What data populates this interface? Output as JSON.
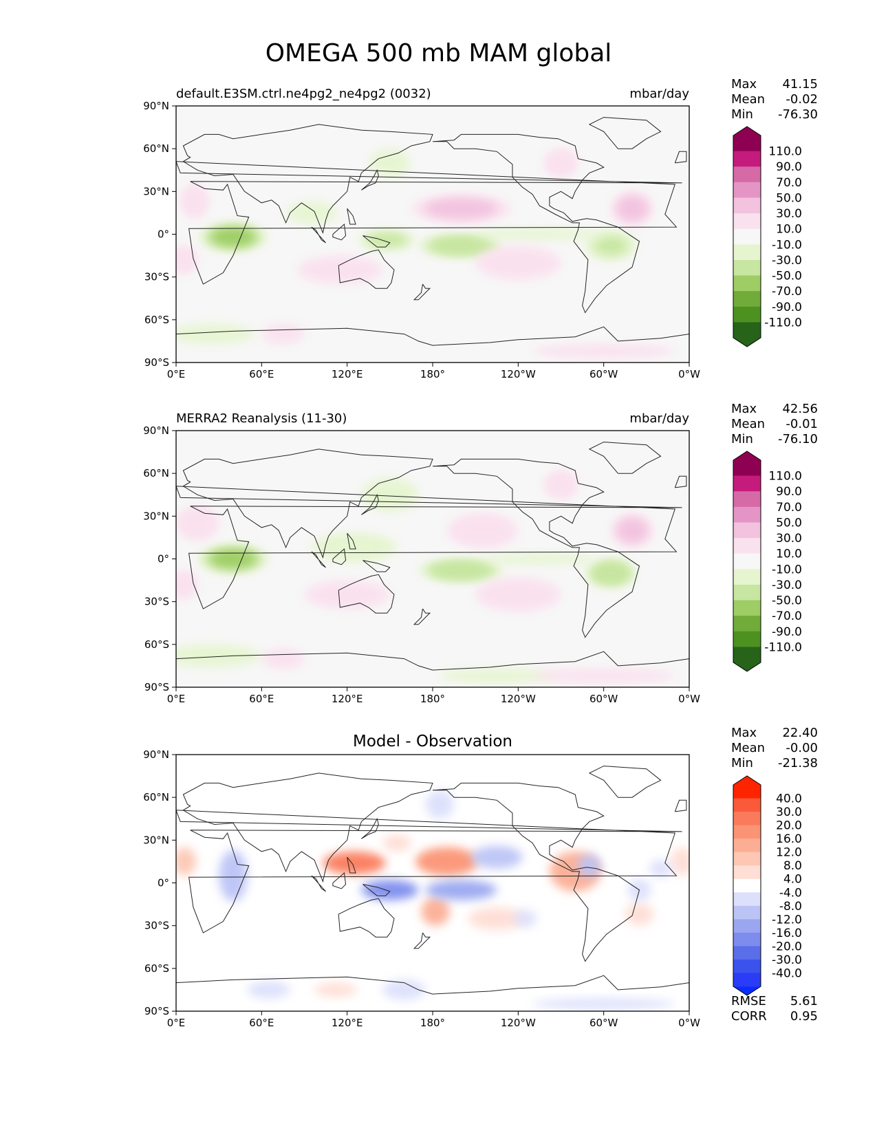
{
  "figure_title": "OMEGA 500 mb MAM global",
  "chart_data": [
    {
      "type": "heatmap",
      "panel": "model",
      "title_left": "default.E3SM.ctrl.ne4pg2_ne4pg2 (0032)",
      "title_center": "",
      "units": "mbar/day",
      "stats": [
        [
          "Max",
          "41.15"
        ],
        [
          "Mean",
          "-0.02"
        ],
        [
          "Min",
          "-76.30"
        ]
      ],
      "xlim": [
        0,
        360
      ],
      "ylim": [
        -90,
        90
      ],
      "xticks": [
        "0°E",
        "60°E",
        "120°E",
        "180°",
        "120°W",
        "60°W",
        "0°W"
      ],
      "yticks": [
        "90°N",
        "60°N",
        "30°N",
        "0°",
        "30°S",
        "60°S",
        "90°S"
      ],
      "colorbar_labels": [
        "110.0",
        "90.0",
        "70.0",
        "50.0",
        "30.0",
        "10.0",
        "-10.0",
        "-30.0",
        "-50.0",
        "-70.0",
        "-90.0",
        "-110.0"
      ],
      "colorbar_colors": [
        "#8e0152",
        "#c51b7d",
        "#d66aa7",
        "#e595c5",
        "#f2c2df",
        "#fae1ee",
        "#f7f7f7",
        "#e6f5d0",
        "#c7e6a1",
        "#9dcd64",
        "#71ab3a",
        "#4d9221",
        "#276419"
      ],
      "colorbar_top_color": "#8e0152",
      "colorbar_bottom_color": "#276419",
      "features": [
        {
          "lon": 40,
          "lat": -2,
          "value": -55,
          "rlon": 24,
          "rlat": 10
        },
        {
          "lon": 148,
          "lat": -4,
          "value": -35,
          "rlon": 20,
          "rlat": 7
        },
        {
          "lon": 200,
          "lat": -8,
          "value": -48,
          "rlon": 30,
          "rlat": 8
        },
        {
          "lon": 305,
          "lat": -8,
          "value": -45,
          "rlon": 18,
          "rlat": 10
        },
        {
          "lon": 95,
          "lat": 15,
          "value": -20,
          "rlon": 18,
          "rlat": 8
        },
        {
          "lon": 255,
          "lat": 0,
          "value": -18,
          "rlon": 45,
          "rlat": 4
        },
        {
          "lon": 150,
          "lat": 50,
          "value": -18,
          "rlon": 14,
          "rlat": 10
        },
        {
          "lon": 25,
          "lat": -70,
          "value": -15,
          "rlon": 30,
          "rlat": 7
        },
        {
          "lon": 13,
          "lat": 23,
          "value": 25,
          "rlon": 10,
          "rlat": 12
        },
        {
          "lon": 200,
          "lat": 18,
          "value": 30,
          "rlon": 35,
          "rlat": 10
        },
        {
          "lon": 320,
          "lat": 18,
          "value": 30,
          "rlon": 15,
          "rlat": 12
        },
        {
          "lon": 5,
          "lat": -18,
          "value": 22,
          "rlon": 10,
          "rlat": 10
        },
        {
          "lon": 270,
          "lat": 50,
          "value": 22,
          "rlon": 12,
          "rlat": 10
        },
        {
          "lon": 115,
          "lat": -25,
          "value": 15,
          "rlon": 30,
          "rlat": 10
        },
        {
          "lon": 240,
          "lat": -20,
          "value": 15,
          "rlon": 30,
          "rlat": 12
        },
        {
          "lon": 75,
          "lat": -70,
          "value": 15,
          "rlon": 15,
          "rlat": 7
        },
        {
          "lon": 300,
          "lat": -82,
          "value": 15,
          "rlon": 50,
          "rlat": 5
        }
      ]
    },
    {
      "type": "heatmap",
      "panel": "obs",
      "title_left": "MERRA2 Reanalysis (11-30)",
      "title_center": "",
      "units": "mbar/day",
      "stats": [
        [
          "Max",
          "42.56"
        ],
        [
          "Mean",
          "-0.01"
        ],
        [
          "Min",
          "-76.10"
        ]
      ],
      "xlim": [
        0,
        360
      ],
      "ylim": [
        -90,
        90
      ],
      "xticks": [
        "0°E",
        "60°E",
        "120°E",
        "180°",
        "120°W",
        "60°W",
        "0°W"
      ],
      "yticks": [
        "90°N",
        "60°N",
        "30°N",
        "0°",
        "30°S",
        "60°S",
        "90°S"
      ],
      "colorbar_labels": [
        "110.0",
        "90.0",
        "70.0",
        "50.0",
        "30.0",
        "10.0",
        "-10.0",
        "-30.0",
        "-50.0",
        "-70.0",
        "-90.0",
        "-110.0"
      ],
      "colorbar_colors": [
        "#8e0152",
        "#c51b7d",
        "#d66aa7",
        "#e595c5",
        "#f2c2df",
        "#fae1ee",
        "#f7f7f7",
        "#e6f5d0",
        "#c7e6a1",
        "#9dcd64",
        "#71ab3a",
        "#4d9221",
        "#276419"
      ],
      "colorbar_top_color": "#8e0152",
      "colorbar_bottom_color": "#276419",
      "features": [
        {
          "lon": 40,
          "lat": 0,
          "value": -55,
          "rlon": 25,
          "rlat": 10
        },
        {
          "lon": 125,
          "lat": 8,
          "value": -30,
          "rlon": 30,
          "rlat": 10
        },
        {
          "lon": 200,
          "lat": -8,
          "value": -48,
          "rlon": 30,
          "rlat": 8
        },
        {
          "lon": 305,
          "lat": -10,
          "value": -50,
          "rlon": 18,
          "rlat": 10
        },
        {
          "lon": 150,
          "lat": 45,
          "value": -15,
          "rlon": 20,
          "rlat": 12
        },
        {
          "lon": 255,
          "lat": 0,
          "value": -18,
          "rlon": 40,
          "rlat": 4
        },
        {
          "lon": 25,
          "lat": -68,
          "value": -18,
          "rlon": 35,
          "rlat": 8
        },
        {
          "lon": 225,
          "lat": -82,
          "value": -15,
          "rlon": 40,
          "rlat": 5
        },
        {
          "lon": 15,
          "lat": 25,
          "value": 22,
          "rlon": 15,
          "rlat": 12
        },
        {
          "lon": 215,
          "lat": 20,
          "value": 28,
          "rlon": 25,
          "rlat": 12
        },
        {
          "lon": 320,
          "lat": 20,
          "value": 30,
          "rlon": 15,
          "rlat": 12
        },
        {
          "lon": 5,
          "lat": -18,
          "value": 25,
          "rlon": 10,
          "rlat": 10
        },
        {
          "lon": 270,
          "lat": 52,
          "value": 22,
          "rlon": 12,
          "rlat": 10
        },
        {
          "lon": 120,
          "lat": -25,
          "value": 15,
          "rlon": 30,
          "rlat": 10
        },
        {
          "lon": 240,
          "lat": -25,
          "value": 15,
          "rlon": 30,
          "rlat": 12
        },
        {
          "lon": 75,
          "lat": -70,
          "value": 15,
          "rlon": 15,
          "rlat": 7
        },
        {
          "lon": 300,
          "lat": -82,
          "value": 15,
          "rlon": 50,
          "rlat": 5
        }
      ]
    },
    {
      "type": "heatmap",
      "panel": "diff",
      "title_left": "",
      "title_center": "Model - Observation",
      "units": "",
      "stats": [
        [
          "Max",
          "22.40"
        ],
        [
          "Mean",
          "-0.00"
        ],
        [
          "Min",
          "-21.38"
        ]
      ],
      "metrics": [
        [
          "RMSE",
          "5.61"
        ],
        [
          "CORR",
          "0.95"
        ]
      ],
      "xlim": [
        0,
        360
      ],
      "ylim": [
        -90,
        90
      ],
      "xticks": [
        "0°E",
        "60°E",
        "120°E",
        "180°",
        "120°W",
        "60°W",
        "0°W"
      ],
      "yticks": [
        "90°N",
        "60°N",
        "30°N",
        "0°",
        "30°S",
        "60°S",
        "90°S"
      ],
      "colorbar_labels": [
        "40.0",
        "30.0",
        "20.0",
        "16.0",
        "12.0",
        "8.0",
        "4.0",
        "-4.0",
        "-8.0",
        "-12.0",
        "-16.0",
        "-20.0",
        "-30.0",
        "-40.0"
      ],
      "colorbar_colors": [
        "#ff2400",
        "#fb5a3a",
        "#fa7b5c",
        "#fb9474",
        "#fcae95",
        "#fdc7b4",
        "#feded5",
        "#ffffff",
        "#dce0fb",
        "#bcc4f6",
        "#9aa7f0",
        "#7d8ced",
        "#5a6eea",
        "#3c52ed",
        "#2a3cf5"
      ],
      "colorbar_top_color": "#ff2400",
      "colorbar_bottom_color": "#0a2cff",
      "features": [
        {
          "lon": 125,
          "lat": 14,
          "value": 20,
          "rlon": 22,
          "rlat": 8
        },
        {
          "lon": 190,
          "lat": 15,
          "value": 18,
          "rlon": 22,
          "rlat": 10
        },
        {
          "lon": 182,
          "lat": -20,
          "value": 15,
          "rlon": 10,
          "rlat": 10
        },
        {
          "lon": 280,
          "lat": 8,
          "value": 12,
          "rlon": 18,
          "rlat": 14
        },
        {
          "lon": 6,
          "lat": 15,
          "value": 10,
          "rlon": 8,
          "rlat": 10
        },
        {
          "lon": 225,
          "lat": -25,
          "value": 6,
          "rlon": 20,
          "rlat": 8
        },
        {
          "lon": 325,
          "lat": -22,
          "value": 6,
          "rlon": 10,
          "rlat": 8
        },
        {
          "lon": 355,
          "lat": 15,
          "value": 6,
          "rlon": 8,
          "rlat": 10
        },
        {
          "lon": 112,
          "lat": -75,
          "value": 6,
          "rlon": 15,
          "rlat": 5
        },
        {
          "lon": 155,
          "lat": 28,
          "value": 5,
          "rlon": 10,
          "rlat": 6
        },
        {
          "lon": 150,
          "lat": -5,
          "value": -18,
          "rlon": 20,
          "rlat": 7
        },
        {
          "lon": 200,
          "lat": -5,
          "value": -14,
          "rlon": 25,
          "rlat": 7
        },
        {
          "lon": 40,
          "lat": 5,
          "value": -10,
          "rlon": 10,
          "rlat": 18
        },
        {
          "lon": 225,
          "lat": 18,
          "value": -10,
          "rlon": 18,
          "rlat": 8
        },
        {
          "lon": 290,
          "lat": 12,
          "value": -10,
          "rlon": 8,
          "rlat": 8
        },
        {
          "lon": 185,
          "lat": 55,
          "value": -6,
          "rlon": 10,
          "rlat": 10
        },
        {
          "lon": 65,
          "lat": -75,
          "value": -8,
          "rlon": 15,
          "rlat": 6
        },
        {
          "lon": 160,
          "lat": -75,
          "value": -8,
          "rlon": 15,
          "rlat": 7
        },
        {
          "lon": 300,
          "lat": -85,
          "value": -6,
          "rlon": 50,
          "rlat": 4
        },
        {
          "lon": 325,
          "lat": -5,
          "value": -8,
          "rlon": 8,
          "rlat": 8
        },
        {
          "lon": 245,
          "lat": -25,
          "value": -6,
          "rlon": 8,
          "rlat": 6
        },
        {
          "lon": 340,
          "lat": 10,
          "value": -5,
          "rlon": 8,
          "rlat": 6
        }
      ]
    }
  ]
}
